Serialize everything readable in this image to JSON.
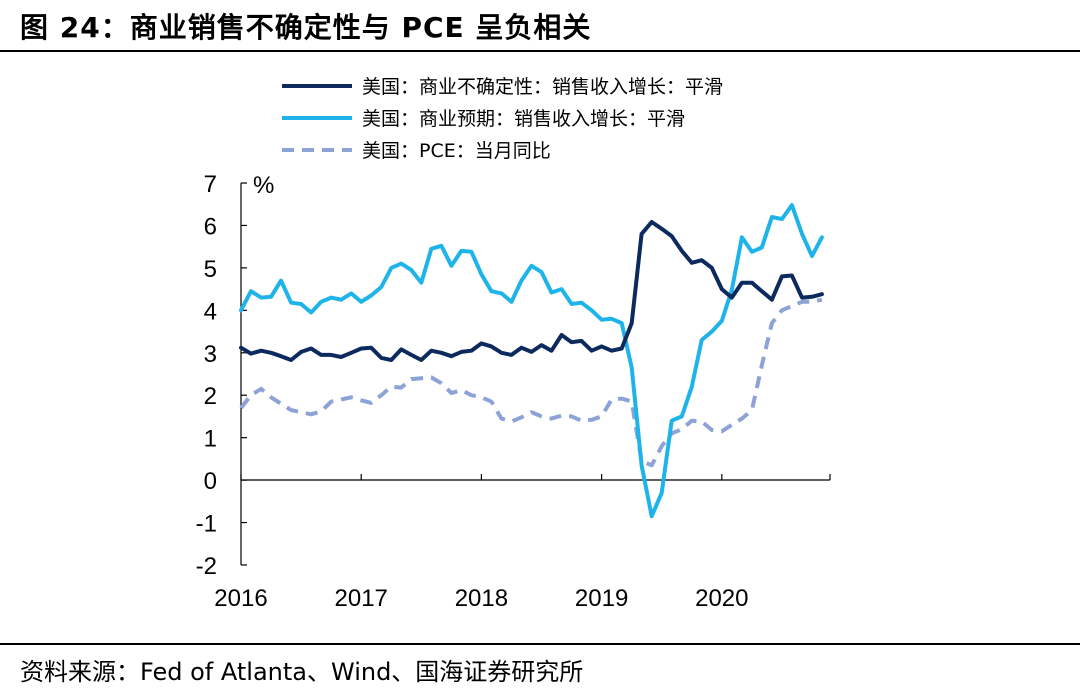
{
  "figure": {
    "title": "图 24：商业销售不确定性与 PCE 呈负相关",
    "source": "资料来源：Fed of Atlanta、Wind、国海证券研究所"
  },
  "chart_data": {
    "type": "line",
    "ylabel": "%",
    "xlabel": "",
    "ylim": [
      -2,
      7
    ],
    "yticks": [
      "7",
      "6",
      "5",
      "4",
      "3",
      "2",
      "1",
      "0",
      "-1",
      "-2"
    ],
    "xlim": [
      2016.0,
      2020.9
    ],
    "xticks": [
      "2016",
      "2017",
      "2018",
      "2019",
      "2020"
    ],
    "grid": false,
    "legend_position": "top",
    "series": [
      {
        "name": "美国：商业不确定性：销售收入增长：平滑",
        "color": "#0d2a5e",
        "style": "solid",
        "x": [
          2016.0,
          2016.083,
          2016.167,
          2016.25,
          2016.333,
          2016.417,
          2016.5,
          2016.583,
          2016.667,
          2016.75,
          2016.833,
          2016.917,
          2017.0,
          2017.083,
          2017.167,
          2017.25,
          2017.333,
          2017.417,
          2017.5,
          2017.583,
          2017.667,
          2017.75,
          2017.833,
          2017.917,
          2018.0,
          2018.083,
          2018.167,
          2018.25,
          2018.333,
          2018.417,
          2018.5,
          2018.583,
          2018.667,
          2018.75,
          2018.833,
          2018.917,
          2019.0,
          2019.083,
          2019.167,
          2019.25,
          2019.333,
          2019.417,
          2019.5,
          2019.583,
          2019.667,
          2019.75,
          2019.833,
          2019.917,
          2020.0,
          2020.083,
          2020.167,
          2020.25,
          2020.333,
          2020.417,
          2020.5,
          2020.583,
          2020.667,
          2020.75,
          2020.833
        ],
        "values": [
          3.12,
          2.98,
          3.05,
          3.0,
          2.92,
          2.83,
          3.02,
          3.1,
          2.95,
          2.95,
          2.9,
          3.0,
          3.1,
          3.12,
          2.88,
          2.83,
          3.08,
          2.95,
          2.83,
          3.05,
          3.0,
          2.92,
          3.02,
          3.05,
          3.22,
          3.15,
          3.0,
          2.95,
          3.12,
          3.02,
          3.18,
          3.05,
          3.42,
          3.25,
          3.28,
          3.05,
          3.15,
          3.05,
          3.1,
          3.7,
          5.8,
          6.08,
          5.92,
          5.75,
          5.4,
          5.12,
          5.18,
          5.0,
          4.5,
          4.3,
          4.65,
          4.65,
          4.45,
          4.25,
          4.8,
          4.82,
          4.3,
          4.32,
          4.38
        ]
      },
      {
        "name": "美国：商业预期：销售收入增长：平滑",
        "color": "#1eb4ea",
        "style": "solid",
        "x": [
          2016.0,
          2016.083,
          2016.167,
          2016.25,
          2016.333,
          2016.417,
          2016.5,
          2016.583,
          2016.667,
          2016.75,
          2016.833,
          2016.917,
          2017.0,
          2017.083,
          2017.167,
          2017.25,
          2017.333,
          2017.417,
          2017.5,
          2017.583,
          2017.667,
          2017.75,
          2017.833,
          2017.917,
          2018.0,
          2018.083,
          2018.167,
          2018.25,
          2018.333,
          2018.417,
          2018.5,
          2018.583,
          2018.667,
          2018.75,
          2018.833,
          2018.917,
          2019.0,
          2019.083,
          2019.167,
          2019.25,
          2019.333,
          2019.417,
          2019.5,
          2019.583,
          2019.667,
          2019.75,
          2019.833,
          2019.917,
          2020.0,
          2020.083,
          2020.167,
          2020.25,
          2020.333,
          2020.417,
          2020.5,
          2020.583,
          2020.667,
          2020.75,
          2020.833
        ],
        "values": [
          4.0,
          4.45,
          4.3,
          4.32,
          4.7,
          4.18,
          4.15,
          3.95,
          4.2,
          4.3,
          4.25,
          4.4,
          4.2,
          4.35,
          4.55,
          5.0,
          5.1,
          4.95,
          4.65,
          5.45,
          5.52,
          5.05,
          5.4,
          5.38,
          4.85,
          4.45,
          4.4,
          4.2,
          4.7,
          5.05,
          4.9,
          4.42,
          4.5,
          4.15,
          4.18,
          4.0,
          3.78,
          3.8,
          3.7,
          2.65,
          0.35,
          -0.85,
          -0.3,
          1.4,
          1.5,
          2.2,
          3.3,
          3.5,
          3.75,
          4.48,
          5.72,
          5.38,
          5.48,
          6.2,
          6.15,
          6.48,
          5.8,
          5.28,
          5.72
        ]
      },
      {
        "name": "美国：PCE：当月同比",
        "color": "#8da2d6",
        "style": "dashed",
        "x": [
          2016.0,
          2016.083,
          2016.167,
          2016.25,
          2016.333,
          2016.417,
          2016.5,
          2016.583,
          2016.667,
          2016.75,
          2016.833,
          2016.917,
          2017.0,
          2017.083,
          2017.167,
          2017.25,
          2017.333,
          2017.417,
          2017.5,
          2017.583,
          2017.667,
          2017.75,
          2017.833,
          2017.917,
          2018.0,
          2018.083,
          2018.167,
          2018.25,
          2018.333,
          2018.417,
          2018.5,
          2018.583,
          2018.667,
          2018.75,
          2018.833,
          2018.917,
          2019.0,
          2019.083,
          2019.167,
          2019.25,
          2019.333,
          2019.417,
          2019.5,
          2019.583,
          2019.667,
          2019.75,
          2019.833,
          2019.917,
          2020.0,
          2020.083,
          2020.167,
          2020.25,
          2020.333,
          2020.417,
          2020.5,
          2020.583,
          2020.667,
          2020.75,
          2020.833
        ],
        "values": [
          1.7,
          2.0,
          2.15,
          1.95,
          1.8,
          1.65,
          1.6,
          1.55,
          1.62,
          1.85,
          1.9,
          1.95,
          1.88,
          1.82,
          2.0,
          2.2,
          2.18,
          2.38,
          2.4,
          2.42,
          2.28,
          2.05,
          2.12,
          2.0,
          1.95,
          1.85,
          1.45,
          1.38,
          1.48,
          1.6,
          1.5,
          1.45,
          1.52,
          1.5,
          1.4,
          1.42,
          1.5,
          1.9,
          1.92,
          1.85,
          0.45,
          0.35,
          0.8,
          1.1,
          1.2,
          1.4,
          1.38,
          1.18,
          1.15,
          1.3,
          1.45,
          1.65,
          2.7,
          3.7,
          4.0,
          4.1,
          4.2,
          4.2,
          4.25
        ]
      }
    ]
  }
}
